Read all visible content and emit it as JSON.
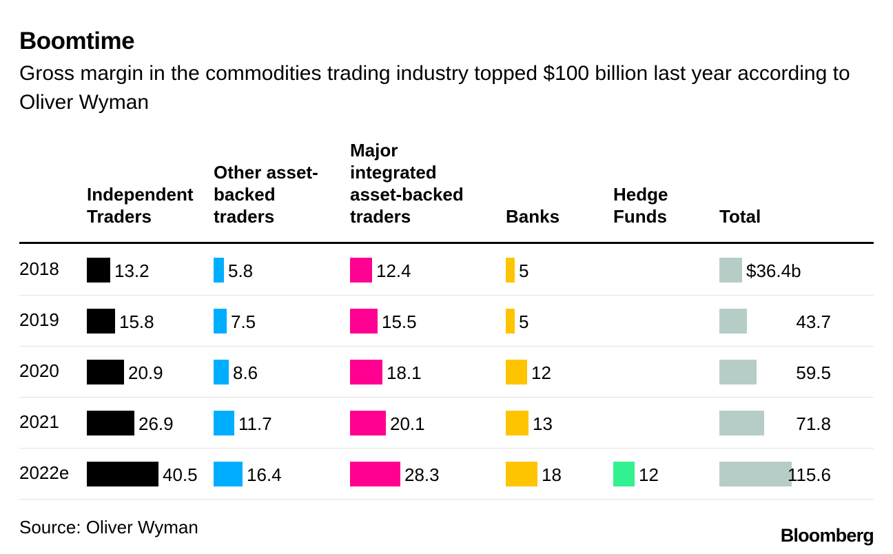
{
  "chart_data": {
    "type": "table",
    "title": "Boomtime",
    "subtitle": "Gross margin in the commodities trading industry topped $100 billion last year according to Oliver Wyman",
    "columns": [
      {
        "key": "independent",
        "label": "Independent\nTraders",
        "color": "#000000"
      },
      {
        "key": "other",
        "label": "Other asset-\nbacked\ntraders",
        "color": "#00aeff"
      },
      {
        "key": "major",
        "label": "Major\nintegrated\nasset-backed\ntraders",
        "color": "#ff0091"
      },
      {
        "key": "banks",
        "label": "Banks",
        "color": "#ffc400"
      },
      {
        "key": "hedge",
        "label": "Hedge\nFunds",
        "color": "#33f191"
      },
      {
        "key": "total",
        "label": "Total",
        "color": "#b6cdc7"
      }
    ],
    "rows": [
      {
        "year": "2018",
        "values": [
          13.2,
          5.8,
          12.4,
          5,
          null,
          36.4
        ],
        "labels": [
          "13.2",
          "5.8",
          "12.4",
          "5",
          "",
          "$36.4b"
        ]
      },
      {
        "year": "2019",
        "values": [
          15.8,
          7.5,
          15.5,
          5,
          null,
          43.7
        ],
        "labels": [
          "15.8",
          "7.5",
          "15.5",
          "5",
          "",
          "43.7"
        ]
      },
      {
        "year": "2020",
        "values": [
          20.9,
          8.6,
          18.1,
          12,
          null,
          59.5
        ],
        "labels": [
          "20.9",
          "8.6",
          "18.1",
          "12",
          "",
          "59.5"
        ]
      },
      {
        "year": "2021",
        "values": [
          26.9,
          11.7,
          20.1,
          13,
          null,
          71.8
        ],
        "labels": [
          "26.9",
          "11.7",
          "20.1",
          "13",
          "",
          "71.8"
        ]
      },
      {
        "year": "2022e",
        "values": [
          40.5,
          16.4,
          28.3,
          18,
          12,
          115.6
        ],
        "labels": [
          "40.5",
          "16.4",
          "28.3",
          "18",
          "12",
          "115.6"
        ]
      }
    ]
  },
  "source": "Source: Oliver Wyman",
  "brand": "Bloomberg"
}
